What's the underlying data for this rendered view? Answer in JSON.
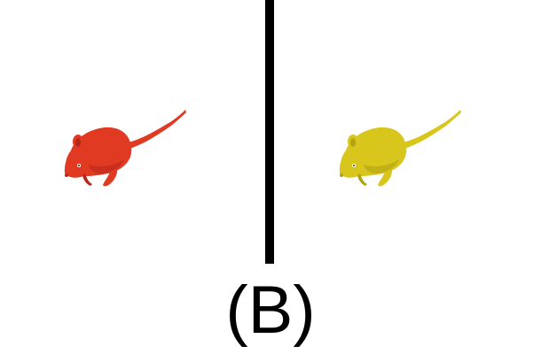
{
  "caption": "(B)",
  "figures": [
    {
      "icon": "red-mouse-icon",
      "color": "#e03a22",
      "shade": "#b8281a"
    },
    {
      "icon": "yellow-mouse-icon",
      "color": "#d8c61c",
      "shade": "#b3a212"
    }
  ],
  "divider_color": "#000000",
  "background": "#ffffff"
}
